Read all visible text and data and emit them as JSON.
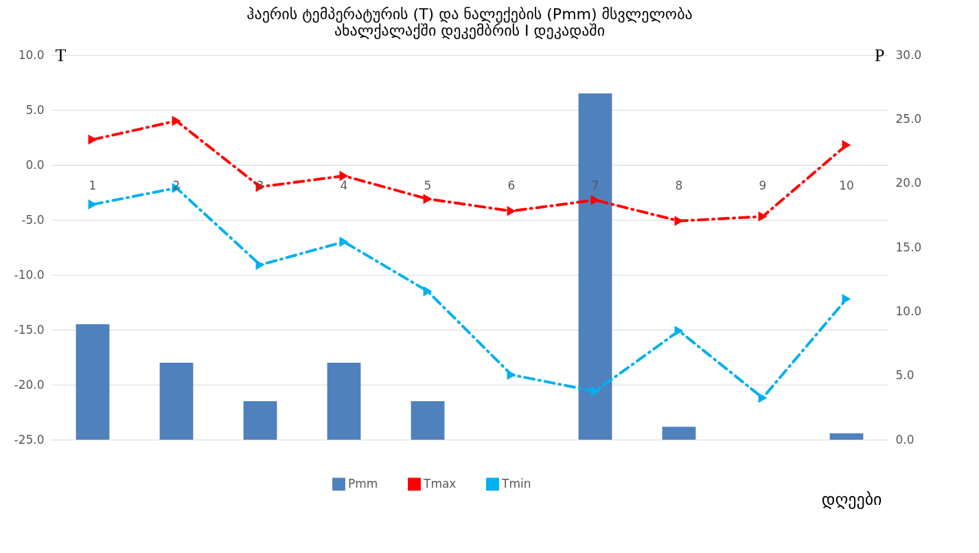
{
  "chart_data": {
    "type": "line",
    "title": [
      "ჰაერის ტემპერატურის (T) და ნალექების (Pmm) მსვლელობა",
      "ახალქალაქში დეკემბრის I დეკადაში"
    ],
    "xlabel": "დღეები",
    "ylabel": "T",
    "y2label": "P",
    "categories": [
      "1",
      "2",
      "3",
      "4",
      "5",
      "6",
      "7",
      "8",
      "9",
      "10"
    ],
    "series": [
      {
        "name": "Pmm",
        "type": "bar",
        "axis": "y2",
        "color": "#4f81bd",
        "values": [
          9,
          6,
          3,
          6,
          3,
          0,
          27,
          1,
          0,
          0.5
        ]
      },
      {
        "name": "Tmax",
        "color": "#ff0000",
        "line_style": "dashed",
        "marker": "triangle",
        "values": [
          2.3,
          4.0,
          -2.0,
          -1.0,
          -3.1,
          -4.2,
          -3.2,
          -5.1,
          -4.7,
          1.8
        ]
      },
      {
        "name": "Tmin",
        "color": "#00b0f0",
        "line_style": "dashed",
        "marker": "triangle",
        "values": [
          -3.6,
          -2.1,
          -9.1,
          -7.0,
          -11.5,
          -19.1,
          -20.6,
          -15.1,
          -21.2,
          -12.2
        ]
      }
    ],
    "ylim": [
      -25,
      10
    ],
    "yticks": [
      {
        "value": -25,
        "label": "-25.0"
      },
      {
        "value": -20,
        "label": "-20.0"
      },
      {
        "value": -15,
        "label": "-15.0"
      },
      {
        "value": -10,
        "label": "-10.0"
      },
      {
        "value": -5,
        "label": "-5.0"
      },
      {
        "value": 0,
        "label": "0.0"
      },
      {
        "value": 5,
        "label": "5.0"
      },
      {
        "value": 10,
        "label": "10.0"
      }
    ],
    "y2lim": [
      0,
      30
    ],
    "y2ticks": [
      {
        "value": 0,
        "label": "0.0"
      },
      {
        "value": 5,
        "label": "5.0"
      },
      {
        "value": 10,
        "label": "10.0"
      },
      {
        "value": 15,
        "label": "15.0"
      },
      {
        "value": 20,
        "label": "20.0"
      },
      {
        "value": 25,
        "label": "25.0"
      },
      {
        "value": 30,
        "label": "30.0"
      }
    ],
    "grid": "y",
    "legend": "bottom"
  }
}
